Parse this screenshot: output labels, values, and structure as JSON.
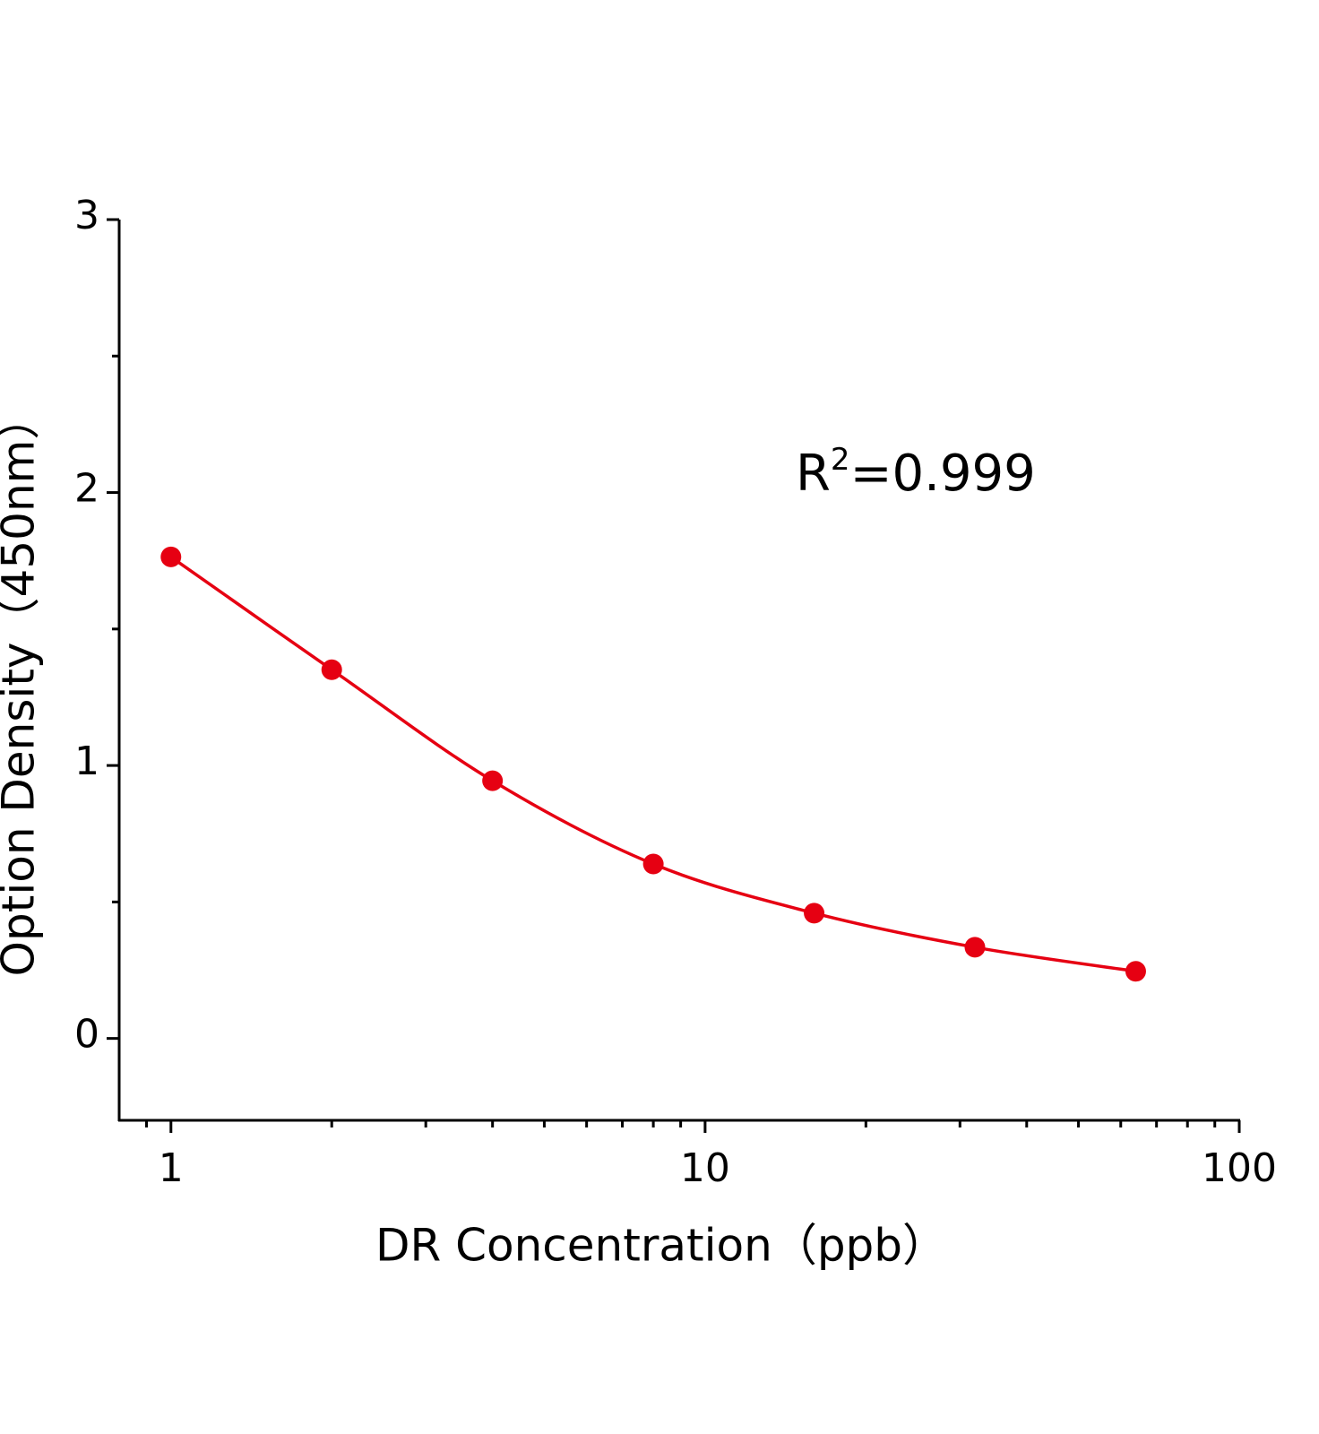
{
  "chart_data": {
    "type": "scatter-line",
    "x_label": "DR Concentration（ppb）",
    "y_label": "Option Density（450nm）",
    "annotation": [
      "R",
      "2",
      "=0.999"
    ],
    "x": [
      1,
      2,
      4,
      8,
      16,
      32,
      64
    ],
    "series": [
      {
        "color": "#e60012",
        "values": [
          1.764,
          1.351,
          0.944,
          0.639,
          0.459,
          0.334,
          0.246
        ]
      }
    ],
    "x_scale": "log",
    "xlim": [
      0.8,
      100
    ],
    "xticks": [
      1,
      10,
      100
    ],
    "xminorticks": [
      0.9,
      2,
      3,
      4,
      5,
      6,
      7,
      8,
      9,
      20,
      30,
      40,
      50,
      60,
      70,
      80,
      90
    ],
    "ylim": [
      -0.3,
      3
    ],
    "yticks": [
      0,
      1,
      2,
      3
    ],
    "yminorticks": [
      0.5,
      1.5,
      2.5
    ]
  }
}
